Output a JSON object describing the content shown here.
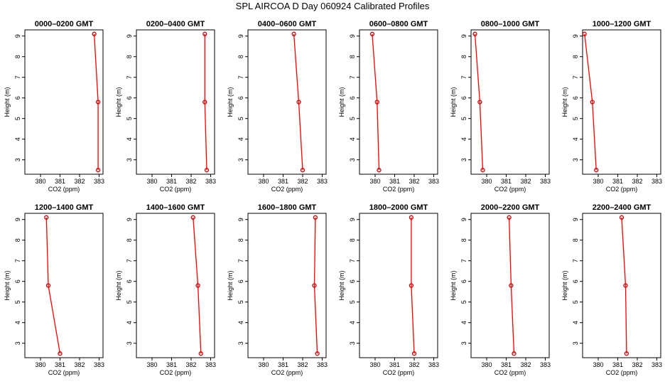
{
  "figure_title": "SPL AIRCOA D  Day 060924  Calibrated Profiles",
  "line_color": "#ff0000",
  "point_color": "#cc0000",
  "chart_data": [
    {
      "type": "line",
      "title": "0000–0200 GMT",
      "xlabel": "CO2 (ppm)",
      "ylabel": "Height (m)",
      "xlim": [
        379.2,
        383.2
      ],
      "ylim": [
        2.3,
        9.3
      ],
      "xticks": [
        380,
        381,
        382,
        383
      ],
      "yticks": [
        3,
        4,
        5,
        6,
        7,
        8,
        9
      ],
      "points": [
        {
          "x": 382.75,
          "y": 9.1
        },
        {
          "x": 382.95,
          "y": 5.8
        },
        {
          "x": 382.95,
          "y": 2.5
        }
      ]
    },
    {
      "type": "line",
      "title": "0200–0400 GMT",
      "xlabel": "CO2 (ppm)",
      "ylabel": "Height (m)",
      "xlim": [
        379.2,
        383.2
      ],
      "ylim": [
        2.3,
        9.3
      ],
      "xticks": [
        380,
        381,
        382,
        383
      ],
      "yticks": [
        3,
        4,
        5,
        6,
        7,
        8,
        9
      ],
      "points": [
        {
          "x": 382.7,
          "y": 9.1
        },
        {
          "x": 382.7,
          "y": 5.8
        },
        {
          "x": 382.8,
          "y": 2.5
        }
      ]
    },
    {
      "type": "line",
      "title": "0400–0600 GMT",
      "xlabel": "CO2 (ppm)",
      "ylabel": "Height (m)",
      "xlim": [
        379.2,
        383.2
      ],
      "ylim": [
        2.3,
        9.3
      ],
      "xticks": [
        380,
        381,
        382,
        383
      ],
      "yticks": [
        3,
        4,
        5,
        6,
        7,
        8,
        9
      ],
      "points": [
        {
          "x": 381.55,
          "y": 9.1
        },
        {
          "x": 381.8,
          "y": 5.8
        },
        {
          "x": 382.0,
          "y": 2.5
        }
      ]
    },
    {
      "type": "line",
      "title": "0600–0800 GMT",
      "xlabel": "CO2 (ppm)",
      "ylabel": "Height (m)",
      "xlim": [
        379.2,
        383.2
      ],
      "ylim": [
        2.3,
        9.3
      ],
      "xticks": [
        380,
        381,
        382,
        383
      ],
      "yticks": [
        3,
        4,
        5,
        6,
        7,
        8,
        9
      ],
      "points": [
        {
          "x": 379.85,
          "y": 9.1
        },
        {
          "x": 380.1,
          "y": 5.8
        },
        {
          "x": 380.2,
          "y": 2.5
        }
      ]
    },
    {
      "type": "line",
      "title": "0800–1000 GMT",
      "xlabel": "CO2 (ppm)",
      "ylabel": "Height (m)",
      "xlim": [
        379.2,
        383.2
      ],
      "ylim": [
        2.3,
        9.3
      ],
      "xticks": [
        380,
        381,
        382,
        383
      ],
      "yticks": [
        3,
        4,
        5,
        6,
        7,
        8,
        9
      ],
      "points": [
        {
          "x": 379.4,
          "y": 9.1
        },
        {
          "x": 379.65,
          "y": 5.8
        },
        {
          "x": 379.8,
          "y": 2.5
        }
      ]
    },
    {
      "type": "line",
      "title": "1000–1200 GMT",
      "xlabel": "CO2 (ppm)",
      "ylabel": "Height (m)",
      "xlim": [
        379.2,
        383.2
      ],
      "ylim": [
        2.3,
        9.3
      ],
      "xticks": [
        380,
        381,
        382,
        383
      ],
      "yticks": [
        3,
        4,
        5,
        6,
        7,
        8,
        9
      ],
      "points": [
        {
          "x": 379.3,
          "y": 9.1
        },
        {
          "x": 379.7,
          "y": 5.8
        },
        {
          "x": 379.9,
          "y": 2.5
        }
      ]
    },
    {
      "type": "line",
      "title": "1200–1400 GMT",
      "xlabel": "CO2 (ppm)",
      "ylabel": "Height (m)",
      "xlim": [
        379.2,
        383.2
      ],
      "ylim": [
        2.3,
        9.3
      ],
      "xticks": [
        380,
        381,
        382,
        383
      ],
      "yticks": [
        3,
        4,
        5,
        6,
        7,
        8,
        9
      ],
      "points": [
        {
          "x": 380.3,
          "y": 9.1
        },
        {
          "x": 380.4,
          "y": 5.8
        },
        {
          "x": 381.0,
          "y": 2.5
        }
      ]
    },
    {
      "type": "line",
      "title": "1400–1600 GMT",
      "xlabel": "CO2 (ppm)",
      "ylabel": "Height (m)",
      "xlim": [
        379.2,
        383.2
      ],
      "ylim": [
        2.3,
        9.3
      ],
      "xticks": [
        380,
        381,
        382,
        383
      ],
      "yticks": [
        3,
        4,
        5,
        6,
        7,
        8,
        9
      ],
      "points": [
        {
          "x": 382.1,
          "y": 9.1
        },
        {
          "x": 382.35,
          "y": 5.8
        },
        {
          "x": 382.5,
          "y": 2.5
        }
      ]
    },
    {
      "type": "line",
      "title": "1600–1800 GMT",
      "xlabel": "CO2 (ppm)",
      "ylabel": "Height (m)",
      "xlim": [
        379.2,
        383.2
      ],
      "ylim": [
        2.3,
        9.3
      ],
      "xticks": [
        380,
        381,
        382,
        383
      ],
      "yticks": [
        3,
        4,
        5,
        6,
        7,
        8,
        9
      ],
      "points": [
        {
          "x": 382.65,
          "y": 9.1
        },
        {
          "x": 382.6,
          "y": 5.8
        },
        {
          "x": 382.75,
          "y": 2.5
        }
      ]
    },
    {
      "type": "line",
      "title": "1800–2000 GMT",
      "xlabel": "CO2 (ppm)",
      "ylabel": "Height (m)",
      "xlim": [
        379.2,
        383.2
      ],
      "ylim": [
        2.3,
        9.3
      ],
      "xticks": [
        380,
        381,
        382,
        383
      ],
      "yticks": [
        3,
        4,
        5,
        6,
        7,
        8,
        9
      ],
      "points": [
        {
          "x": 381.85,
          "y": 9.1
        },
        {
          "x": 381.85,
          "y": 5.8
        },
        {
          "x": 382.0,
          "y": 2.5
        }
      ]
    },
    {
      "type": "line",
      "title": "2000–2200 GMT",
      "xlabel": "CO2 (ppm)",
      "ylabel": "Height (m)",
      "xlim": [
        379.2,
        383.2
      ],
      "ylim": [
        2.3,
        9.3
      ],
      "xticks": [
        380,
        381,
        382,
        383
      ],
      "yticks": [
        3,
        4,
        5,
        6,
        7,
        8,
        9
      ],
      "points": [
        {
          "x": 381.15,
          "y": 9.1
        },
        {
          "x": 381.25,
          "y": 5.8
        },
        {
          "x": 381.4,
          "y": 2.5
        }
      ]
    },
    {
      "type": "line",
      "title": "2200–2400 GMT",
      "xlabel": "CO2 (ppm)",
      "ylabel": "Height (m)",
      "xlim": [
        379.2,
        383.2
      ],
      "ylim": [
        2.3,
        9.3
      ],
      "xticks": [
        380,
        381,
        382,
        383
      ],
      "yticks": [
        3,
        4,
        5,
        6,
        7,
        8,
        9
      ],
      "points": [
        {
          "x": 381.2,
          "y": 9.1
        },
        {
          "x": 381.4,
          "y": 5.8
        },
        {
          "x": 381.45,
          "y": 2.5
        }
      ]
    }
  ]
}
